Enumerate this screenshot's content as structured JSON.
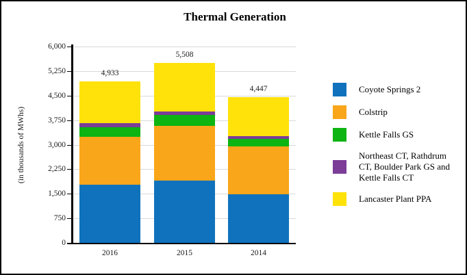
{
  "chart_data": {
    "type": "bar",
    "stacked": true,
    "title": "Thermal Generation",
    "ylabel": "(in thousands of MWhs)",
    "xlabel": "",
    "categories": [
      "2016",
      "2015",
      "2014"
    ],
    "series": [
      {
        "name": "Coyote Springs 2",
        "color": "#1072BC",
        "values": [
          1775,
          1895,
          1475
        ]
      },
      {
        "name": "Colstrip",
        "color": "#F9A61B",
        "values": [
          1460,
          1690,
          1480
        ]
      },
      {
        "name": "Kettle Falls GS",
        "color": "#0DB412",
        "values": [
          300,
          315,
          230
        ]
      },
      {
        "name": "Northeast CT, Rathdrum CT, Boulder Park GS and Kettle Falls CT",
        "color": "#7B3D97",
        "values": [
          120,
          125,
          85
        ]
      },
      {
        "name": "Lancaster Plant PPA",
        "color": "#FFE20A",
        "values": [
          1278,
          1483,
          1177
        ]
      }
    ],
    "totals": [
      4933,
      5508,
      4447
    ],
    "total_labels": [
      "4,933",
      "5,508",
      "4,447"
    ],
    "ylim": [
      0,
      6000
    ],
    "y_ticks": [
      0,
      750,
      1500,
      2250,
      3000,
      3750,
      4500,
      5250,
      6000
    ],
    "y_tick_labels": [
      "0",
      "750",
      "1,500",
      "2,250",
      "3,000",
      "3,750",
      "4,500",
      "5,250",
      "6,000"
    ],
    "grid": true,
    "legend_position": "right"
  }
}
